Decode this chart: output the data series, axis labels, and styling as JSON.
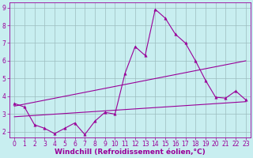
{
  "xlabel": "Windchill (Refroidissement éolien,°C)",
  "bg_color": "#c8eef0",
  "line_color": "#990099",
  "xlim": [
    -0.5,
    23.5
  ],
  "ylim": [
    1.7,
    9.3
  ],
  "xticks": [
    0,
    1,
    2,
    3,
    4,
    5,
    6,
    7,
    8,
    9,
    10,
    11,
    12,
    13,
    14,
    15,
    16,
    17,
    18,
    19,
    20,
    21,
    22,
    23
  ],
  "yticks": [
    2,
    3,
    4,
    5,
    6,
    7,
    8,
    9
  ],
  "data_x": [
    0,
    1,
    2,
    3,
    4,
    5,
    6,
    7,
    8,
    9,
    10,
    11,
    12,
    13,
    14,
    15,
    16,
    17,
    18,
    19,
    20,
    21,
    22,
    23
  ],
  "data_y": [
    3.6,
    3.4,
    2.4,
    2.2,
    1.9,
    2.2,
    2.5,
    1.85,
    2.6,
    3.1,
    3.0,
    5.3,
    6.8,
    6.3,
    8.9,
    8.4,
    7.5,
    7.0,
    6.0,
    4.9,
    3.95,
    3.9,
    4.3,
    3.8
  ],
  "trend1_x": [
    0,
    23
  ],
  "trend1_y": [
    3.45,
    6.0
  ],
  "trend2_x": [
    0,
    23
  ],
  "trend2_y": [
    2.85,
    3.7
  ],
  "grid_color": "#9cbcbe",
  "tick_fontsize": 5.5,
  "label_fontsize": 6.5
}
